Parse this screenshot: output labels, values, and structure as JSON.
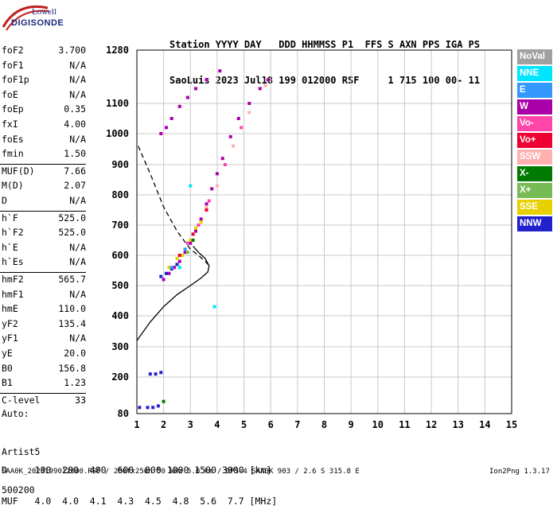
{
  "logo": {
    "line1": "Lowell",
    "line2": "DIGISONDE"
  },
  "header": {
    "line1": "Station YYYY DAY   DDD HHMMSS P1  FFS S AXN PPS IGA PS",
    "line2": "SaoLuis 2023 Jul18 199 012000 RSF     1 715 100 00- 11"
  },
  "params": [
    {
      "name": "foF2",
      "value": "3.700"
    },
    {
      "name": "foF1",
      "value": "N/A"
    },
    {
      "name": "foF1p",
      "value": "N/A"
    },
    {
      "name": "foE",
      "value": "N/A"
    },
    {
      "name": "foEp",
      "value": "0.35"
    },
    {
      "name": "fxI",
      "value": "4.00"
    },
    {
      "name": "foEs",
      "value": "N/A"
    },
    {
      "name": "fmin",
      "value": "1.50"
    },
    {
      "name": "MUF(D)",
      "value": "7.66"
    },
    {
      "name": "M(D)",
      "value": "2.07"
    },
    {
      "name": "D",
      "value": "N/A"
    },
    {
      "name": "h`F",
      "value": "525.0"
    },
    {
      "name": "h`F2",
      "value": "525.0"
    },
    {
      "name": "h`E",
      "value": "N/A"
    },
    {
      "name": "h`Es",
      "value": "N/A"
    },
    {
      "name": "hmF2",
      "value": "565.7"
    },
    {
      "name": "hmF1",
      "value": "N/A"
    },
    {
      "name": "hmE",
      "value": "110.0"
    },
    {
      "name": "yF2",
      "value": "135.4"
    },
    {
      "name": "yF1",
      "value": "N/A"
    },
    {
      "name": "yE",
      "value": "20.0"
    },
    {
      "name": "B0",
      "value": "156.8"
    },
    {
      "name": "B1",
      "value": "1.23"
    },
    {
      "name": "C-level",
      "value": "33"
    }
  ],
  "auto": {
    "line1": "Auto:",
    "line2": "Artist5",
    "line3": "500200"
  },
  "legend": [
    {
      "label": "NoVal",
      "color": "#a0a0a0"
    },
    {
      "label": "NNE",
      "color": "#00e5ff"
    },
    {
      "label": "E",
      "color": "#3399ff"
    },
    {
      "label": "W",
      "color": "#aa00aa"
    },
    {
      "label": "Vo-",
      "color": "#ff44aa"
    },
    {
      "label": "Vo+",
      "color": "#ee0033"
    },
    {
      "label": "SSW",
      "color": "#ffb0b0"
    },
    {
      "label": "X-",
      "color": "#007a00"
    },
    {
      "label": "X+",
      "color": "#77bb55"
    },
    {
      "label": "SSE",
      "color": "#e6d000"
    },
    {
      "label": "NNW",
      "color": "#2222cc"
    }
  ],
  "footer": {
    "line1": "D     100  200  400  600  800 1000 1500 3000 [km]",
    "line2": "MUF   4.0  4.0  4.1  4.3  4.5  4.8  5.6  7.7 [MHz]"
  },
  "status": "SAA0K_2023199012000.RSF / 280fx256h 50 kHz 5.0 km / DPS-4 SAA0K 903 / 2.6 S 315.8 E",
  "version": "Ion2Png 1.3.17",
  "chart_data": {
    "type": "scatter",
    "x_ticks": [
      "1",
      "2",
      "3",
      "4",
      "5",
      "6",
      "7",
      "8",
      "9",
      "10",
      "11",
      "12",
      "13",
      "14",
      "15"
    ],
    "y_ticks": [
      "1280",
      "1100",
      "1000",
      "900",
      "800",
      "700",
      "600",
      "500",
      "400",
      "300",
      "200",
      "80"
    ],
    "xlim": [
      1,
      15
    ],
    "ylim": [
      80,
      1280
    ],
    "grid": true,
    "series": [
      {
        "name": "W",
        "color": "#aa00aa",
        "points": [
          [
            2.0,
            520
          ],
          [
            2.2,
            540
          ],
          [
            2.4,
            560
          ],
          [
            2.6,
            580
          ],
          [
            2.8,
            610
          ],
          [
            3.0,
            640
          ],
          [
            3.2,
            680
          ],
          [
            3.4,
            720
          ],
          [
            3.6,
            770
          ],
          [
            3.8,
            820
          ],
          [
            4.0,
            870
          ],
          [
            4.2,
            920
          ],
          [
            4.5,
            990
          ],
          [
            4.8,
            1050
          ],
          [
            5.2,
            1100
          ],
          [
            5.6,
            1150
          ],
          [
            2.3,
            1050
          ],
          [
            2.6,
            1090
          ],
          [
            2.9,
            1120
          ],
          [
            3.2,
            1150
          ],
          [
            3.6,
            1180
          ],
          [
            4.1,
            1210
          ],
          [
            1.9,
            1000
          ],
          [
            2.1,
            1020
          ],
          [
            5.9,
            1180
          ]
        ]
      },
      {
        "name": "NNW",
        "color": "#2222cc",
        "points": [
          [
            1.5,
            210
          ],
          [
            1.7,
            210
          ],
          [
            1.9,
            215
          ],
          [
            1.1,
            100
          ],
          [
            1.4,
            100
          ],
          [
            1.6,
            100
          ],
          [
            1.8,
            105
          ],
          [
            1.9,
            530
          ],
          [
            2.1,
            540
          ],
          [
            2.3,
            555
          ],
          [
            2.5,
            570
          ]
        ]
      },
      {
        "name": "SSE",
        "color": "#e6d000",
        "points": [
          [
            2.2,
            560
          ],
          [
            2.5,
            590
          ],
          [
            2.8,
            620
          ],
          [
            3.0,
            650
          ],
          [
            3.2,
            690
          ],
          [
            3.4,
            710
          ],
          [
            2.7,
            600
          ]
        ]
      },
      {
        "name": "SSW",
        "color": "#ffb0b0",
        "points": [
          [
            3.3,
            700
          ],
          [
            3.6,
            760
          ],
          [
            4.0,
            830
          ],
          [
            4.6,
            960
          ],
          [
            5.2,
            1070
          ],
          [
            5.8,
            1160
          ]
        ]
      },
      {
        "name": "Vo-",
        "color": "#ff44aa",
        "points": [
          [
            2.9,
            640
          ],
          [
            3.3,
            700
          ],
          [
            3.7,
            780
          ],
          [
            4.3,
            900
          ],
          [
            4.9,
            1020
          ]
        ]
      },
      {
        "name": "Vo+",
        "color": "#ee0033",
        "points": [
          [
            2.6,
            600
          ],
          [
            3.1,
            670
          ],
          [
            3.6,
            750
          ]
        ]
      },
      {
        "name": "NNE",
        "color": "#00e5ff",
        "points": [
          [
            2.6,
            560
          ],
          [
            3.9,
            430
          ],
          [
            3.0,
            830
          ]
        ]
      },
      {
        "name": "E",
        "color": "#3399ff",
        "points": [
          [
            2.3,
            560
          ],
          [
            2.8,
            620
          ]
        ]
      },
      {
        "name": "X-",
        "color": "#007a00",
        "points": [
          [
            2.0,
            120
          ],
          [
            3.1,
            650
          ]
        ]
      },
      {
        "name": "X+",
        "color": "#77bb55",
        "points": [
          [
            2.9,
            610
          ]
        ]
      }
    ],
    "profile_solid": [
      [
        1.0,
        320
      ],
      [
        1.5,
        380
      ],
      [
        2.0,
        430
      ],
      [
        2.5,
        470
      ],
      [
        3.0,
        500
      ],
      [
        3.4,
        525
      ],
      [
        3.65,
        545
      ],
      [
        3.7,
        565
      ],
      [
        3.55,
        590
      ],
      [
        3.3,
        610
      ],
      [
        3.1,
        630
      ]
    ],
    "profile_dashed": [
      [
        1.05,
        960
      ],
      [
        1.5,
        870
      ],
      [
        2.0,
        760
      ],
      [
        2.5,
        680
      ],
      [
        3.0,
        620
      ],
      [
        3.3,
        600
      ],
      [
        3.55,
        580
      ],
      [
        3.7,
        566
      ]
    ]
  }
}
